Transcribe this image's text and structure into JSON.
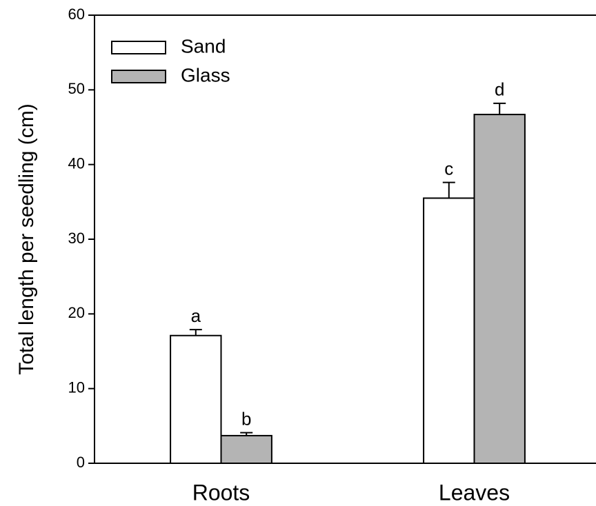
{
  "chart_data": {
    "type": "bar",
    "ylabel": "Total length per seedling (cm)",
    "categories": [
      "Roots",
      "Leaves"
    ],
    "series": [
      {
        "name": "Sand",
        "color": "#ffffff",
        "values": [
          17.1,
          35.5
        ],
        "errors": [
          0.8,
          2.1
        ],
        "letters": [
          "a",
          "c"
        ]
      },
      {
        "name": "Glass",
        "color": "#b4b4b4",
        "values": [
          3.7,
          46.7
        ],
        "errors": [
          0.4,
          1.5
        ],
        "letters": [
          "b",
          "d"
        ]
      }
    ],
    "ylim": [
      0,
      60
    ],
    "yticks": [
      0,
      10,
      20,
      30,
      40,
      50,
      60
    ],
    "legend": "upper left",
    "grid": false
  }
}
